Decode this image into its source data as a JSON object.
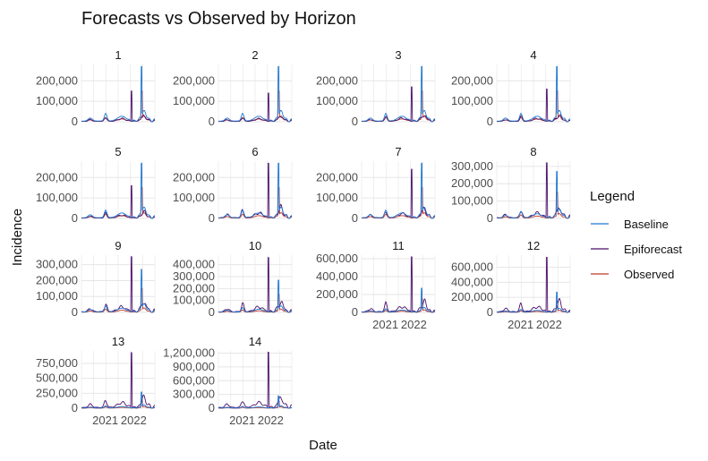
{
  "chart_data": {
    "type": "line",
    "title": "Forecasts vs Observed by Horizon",
    "xlabel": "Date",
    "ylabel": "Incidence",
    "x_ticks": [
      "2021",
      "2022"
    ],
    "x_range": [
      "2020-03-01",
      "2022-09-30"
    ],
    "grid": true,
    "legend": {
      "title": "Legend",
      "position": "right",
      "entries": [
        {
          "label": "Baseline",
          "color": "#1f78d1"
        },
        {
          "label": "Epiforecast",
          "color": "#4b0f6b"
        },
        {
          "label": "Observed",
          "color": "#c0392b"
        }
      ]
    },
    "panels": [
      {
        "label": "1",
        "ylim": [
          0,
          280000
        ],
        "yticks": [
          0,
          100000,
          200000
        ],
        "ytick_labels": [
          "0",
          "100,000",
          "200,000"
        ],
        "peaks": {
          "Baseline": 270000,
          "Epiforecast": 150000,
          "Observed": 150000
        }
      },
      {
        "label": "2",
        "ylim": [
          0,
          280000
        ],
        "yticks": [
          0,
          100000,
          200000
        ],
        "ytick_labels": [
          "0",
          "100,000",
          "200,000"
        ],
        "peaks": {
          "Baseline": 270000,
          "Epiforecast": 140000,
          "Observed": 150000
        }
      },
      {
        "label": "3",
        "ylim": [
          0,
          280000
        ],
        "yticks": [
          0,
          100000,
          200000
        ],
        "ytick_labels": [
          "0",
          "100,000",
          "200,000"
        ],
        "peaks": {
          "Baseline": 270000,
          "Epiforecast": 170000,
          "Observed": 150000
        }
      },
      {
        "label": "4",
        "ylim": [
          0,
          280000
        ],
        "yticks": [
          0,
          100000,
          200000
        ],
        "ytick_labels": [
          "0",
          "100,000",
          "200,000"
        ],
        "peaks": {
          "Baseline": 270000,
          "Epiforecast": 160000,
          "Observed": 150000
        }
      },
      {
        "label": "5",
        "ylim": [
          0,
          280000
        ],
        "yticks": [
          0,
          100000,
          200000
        ],
        "ytick_labels": [
          "0",
          "100,000",
          "200,000"
        ],
        "peaks": {
          "Baseline": 270000,
          "Epiforecast": 160000,
          "Observed": 150000
        }
      },
      {
        "label": "6",
        "ylim": [
          0,
          280000
        ],
        "yticks": [
          0,
          100000,
          200000
        ],
        "ytick_labels": [
          "0",
          "100,000",
          "200,000"
        ],
        "peaks": {
          "Baseline": 270000,
          "Epiforecast": 270000,
          "Observed": 150000
        }
      },
      {
        "label": "7",
        "ylim": [
          0,
          280000
        ],
        "yticks": [
          0,
          100000,
          200000
        ],
        "ytick_labels": [
          "0",
          "100,000",
          "200,000"
        ],
        "peaks": {
          "Baseline": 270000,
          "Epiforecast": 240000,
          "Observed": 150000
        }
      },
      {
        "label": "8",
        "ylim": [
          0,
          330000
        ],
        "yticks": [
          0,
          100000,
          200000,
          300000
        ],
        "ytick_labels": [
          "0",
          "100,000",
          "200,000",
          "300,000"
        ],
        "peaks": {
          "Baseline": 270000,
          "Epiforecast": 320000,
          "Observed": 150000
        }
      },
      {
        "label": "9",
        "ylim": [
          0,
          360000
        ],
        "yticks": [
          0,
          100000,
          200000,
          300000
        ],
        "ytick_labels": [
          "0",
          "100,000",
          "200,000",
          "300,000"
        ],
        "peaks": {
          "Baseline": 270000,
          "Epiforecast": 350000,
          "Observed": 150000
        }
      },
      {
        "label": "10",
        "ylim": [
          0,
          480000
        ],
        "yticks": [
          0,
          100000,
          200000,
          300000,
          400000
        ],
        "ytick_labels": [
          "0",
          "100,000",
          "200,000",
          "300,000",
          "400,000"
        ],
        "peaks": {
          "Baseline": 270000,
          "Epiforecast": 460000,
          "Observed": 150000
        }
      },
      {
        "label": "11",
        "ylim": [
          0,
          640000
        ],
        "yticks": [
          0,
          200000,
          400000,
          600000
        ],
        "ytick_labels": [
          "0",
          "200,000",
          "400,000",
          "600,000"
        ],
        "peaks": {
          "Baseline": 270000,
          "Epiforecast": 620000,
          "Observed": 150000
        }
      },
      {
        "label": "12",
        "ylim": [
          0,
          760000
        ],
        "yticks": [
          0,
          200000,
          400000,
          600000
        ],
        "ytick_labels": [
          "0",
          "200,000",
          "400,000",
          "600,000"
        ],
        "peaks": {
          "Baseline": 270000,
          "Epiforecast": 730000,
          "Observed": 150000
        }
      },
      {
        "label": "13",
        "ylim": [
          0,
          960000
        ],
        "yticks": [
          0,
          250000,
          500000,
          750000
        ],
        "ytick_labels": [
          "0",
          "250,000",
          "500,000",
          "750,000"
        ],
        "peaks": {
          "Baseline": 270000,
          "Epiforecast": 930000,
          "Observed": 150000
        }
      },
      {
        "label": "14",
        "ylim": [
          0,
          1250000
        ],
        "yticks": [
          0,
          300000,
          600000,
          900000,
          1200000
        ],
        "ytick_labels": [
          "0",
          "300,000",
          "600,000",
          "900,000",
          "1,200,000"
        ],
        "peaks": {
          "Baseline": 270000,
          "Epiforecast": 1220000,
          "Observed": 150000
        }
      }
    ]
  }
}
